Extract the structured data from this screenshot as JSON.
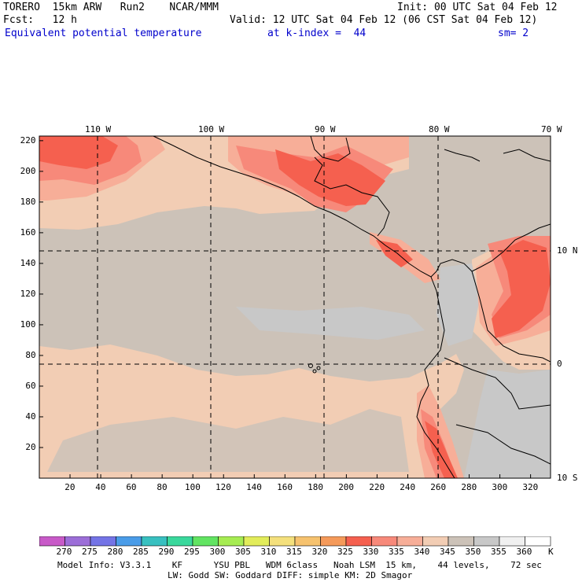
{
  "header": {
    "model": "TORERO  15km ARW   Run2    NCAR/MMM",
    "init": "Init: 00 UTC Sat 04 Feb 12",
    "fcst": "Fcst:   12 h",
    "valid": "Valid: 12 UTC Sat 04 Feb 12 (06 CST Sat 04 Feb 12)",
    "field": "Equivalent potential temperature",
    "level": "at k-index =  44",
    "smooth": "sm= 2"
  },
  "map": {
    "lon_labels": [
      "110 W",
      "100 W",
      "90 W",
      "80 W",
      "70 W"
    ],
    "lat_labels": [
      "10 N",
      "0",
      "10 S"
    ],
    "x_ticks": [
      "20",
      "40",
      "60",
      "80",
      "100",
      "120",
      "140",
      "160",
      "180",
      "200",
      "220",
      "240",
      "260",
      "280",
      "300",
      "320"
    ],
    "y_ticks": [
      "220",
      "200",
      "180",
      "160",
      "140",
      "120",
      "100",
      "80",
      "60",
      "40",
      "20"
    ],
    "colors": {
      "ocean_main": "#ccc2b8",
      "ocean_cool": "#c8c8c8",
      "band_345": "#f2cdb4",
      "band_340": "#f7ae98",
      "band_335": "#f7897a",
      "band_330": "#f5604f",
      "coast": "#000000",
      "grid": "#000000"
    }
  },
  "colorbar": {
    "labels": [
      "270",
      "275",
      "280",
      "285",
      "290",
      "295",
      "300",
      "305",
      "310",
      "315",
      "320",
      "325",
      "330",
      "335",
      "340",
      "345",
      "350",
      "355",
      "360"
    ],
    "unit": "K",
    "colors": [
      "#c85ac8",
      "#9c6ed8",
      "#7474e6",
      "#4a9ce8",
      "#38c0c0",
      "#3ad89c",
      "#62e462",
      "#a6ec52",
      "#e2ec5a",
      "#f4e07c",
      "#f6c26e",
      "#f59a5a",
      "#f5604f",
      "#f7897a",
      "#f7ae98",
      "#f2cdb4",
      "#ccc2b8",
      "#c8c8c8",
      "#f0f0f0",
      "#ffffff"
    ]
  },
  "footer": {
    "line1": "Model Info: V3.3.1    KF      YSU PBL   WDM 6class   Noah LSM  15 km,    44 levels,    72 sec",
    "line2": "LW: Godd SW: Goddard DIFF: simple KM: 2D Smagor"
  }
}
